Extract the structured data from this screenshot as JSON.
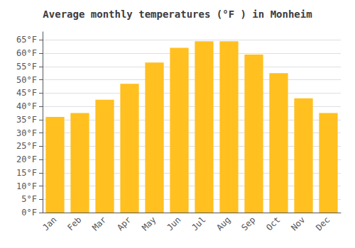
{
  "chart_data": {
    "type": "bar",
    "title": "Average monthly temperatures (°F ) in Monheim",
    "categories": [
      "Jan",
      "Feb",
      "Mar",
      "Apr",
      "May",
      "Jun",
      "Jul",
      "Aug",
      "Sep",
      "Oct",
      "Nov",
      "Dec"
    ],
    "values": [
      36,
      37.5,
      42.5,
      48.5,
      56.5,
      62,
      64.5,
      64.5,
      59.5,
      52.5,
      43,
      37.5
    ],
    "color": "#FFC020",
    "ylim": [
      0,
      68
    ],
    "yticks": [
      {
        "value": 0,
        "label": "0°F"
      },
      {
        "value": 5,
        "label": "5°F"
      },
      {
        "value": 10,
        "label": "10°F"
      },
      {
        "value": 15,
        "label": "15°F"
      },
      {
        "value": 20,
        "label": "20°F"
      },
      {
        "value": 25,
        "label": "25°F"
      },
      {
        "value": 30,
        "label": "30°F"
      },
      {
        "value": 35,
        "label": "35°F"
      },
      {
        "value": 40,
        "label": "40°F"
      },
      {
        "value": 45,
        "label": "45°F"
      },
      {
        "value": 50,
        "label": "50°F"
      },
      {
        "value": 55,
        "label": "55°F"
      },
      {
        "value": 60,
        "label": "60°F"
      },
      {
        "value": 65,
        "label": "65°F"
      }
    ],
    "grid": true
  }
}
